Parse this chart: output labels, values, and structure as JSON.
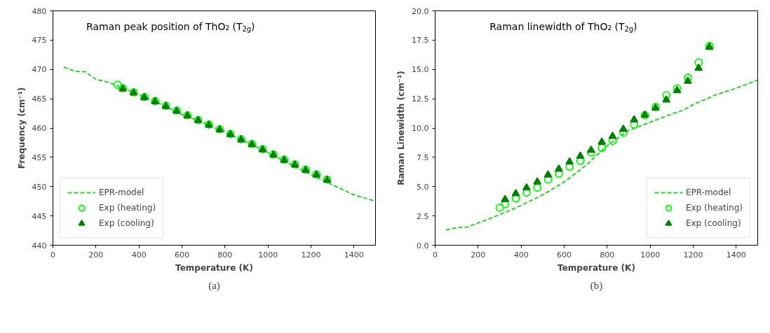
{
  "chart_data": [
    {
      "type": "scatter",
      "title": "Raman peak position of ThO₂ (T$_{2g}$)",
      "xlabel": "Temperature (K)",
      "ylabel": "Frequency (cm⁻¹)",
      "annotations": [
        "(a)"
      ],
      "xlim": [
        0,
        1500
      ],
      "ylim": [
        440,
        480
      ],
      "xticks": [
        0,
        200,
        400,
        600,
        800,
        1000,
        1200,
        1400
      ],
      "yticks": [
        440,
        445,
        450,
        455,
        460,
        465,
        470,
        475,
        480
      ],
      "grid": false,
      "legend": "bottom left",
      "series": [
        {
          "name": "EPR-model",
          "type": "line",
          "line_style": "dashed",
          "color": "#32cd32",
          "x": [
            50,
            100,
            150,
            200,
            250,
            300,
            400,
            500,
            600,
            700,
            800,
            900,
            1000,
            1100,
            1200,
            1300,
            1400,
            1500
          ],
          "values": [
            470.4,
            469.7,
            469.6,
            468.3,
            467.9,
            467.2,
            465.7,
            464.1,
            462.3,
            460.9,
            459.3,
            457.6,
            455.8,
            453.9,
            452.0,
            450.3,
            448.6,
            447.5
          ]
        },
        {
          "name": "Exp (heating)",
          "marker": "circle",
          "color": "#00ff00",
          "x": [
            300,
            325,
            375,
            425,
            475,
            525,
            575,
            625,
            675,
            725,
            775,
            825,
            875,
            925,
            975,
            1025,
            1075,
            1125,
            1175,
            1225,
            1275
          ],
          "values": [
            467.4,
            466.8,
            466.1,
            465.3,
            464.6,
            463.8,
            463.0,
            462.2,
            461.4,
            460.6,
            459.8,
            459.0,
            458.1,
            457.3,
            456.4,
            455.5,
            454.6,
            453.8,
            452.9,
            452.1,
            451.2
          ]
        },
        {
          "name": "Exp (cooling)",
          "marker": "triangle",
          "color": "#008000",
          "x": [
            325,
            375,
            425,
            475,
            525,
            575,
            625,
            675,
            725,
            775,
            825,
            875,
            925,
            975,
            1025,
            1075,
            1125,
            1175,
            1225,
            1275
          ],
          "values": [
            466.7,
            466.0,
            465.2,
            464.5,
            463.7,
            462.9,
            462.1,
            461.3,
            460.5,
            459.7,
            458.9,
            458.0,
            457.2,
            456.3,
            455.4,
            454.5,
            453.7,
            452.8,
            452.0,
            451.1
          ]
        }
      ]
    },
    {
      "type": "scatter",
      "title": "Raman linewidth of ThO₂ (T$_{2g}$)",
      "xlabel": "Temperature (K)",
      "ylabel": "Raman Linewidth (cm⁻¹)",
      "annotations": [
        "(b)"
      ],
      "xlim": [
        0,
        1500
      ],
      "ylim": [
        0,
        20
      ],
      "xticks": [
        0,
        200,
        400,
        600,
        800,
        1000,
        1200,
        1400
      ],
      "yticks": [
        {
          "value": 0,
          "label": "0.0"
        },
        {
          "value": 2.5,
          "label": "2.5"
        },
        {
          "value": 5,
          "label": "5.0"
        },
        {
          "value": 7.5,
          "label": "7.5"
        },
        {
          "value": 10,
          "label": "10.0"
        },
        {
          "value": 12.5,
          "label": "12.5"
        },
        {
          "value": 15,
          "label": "15.0"
        },
        {
          "value": 17.5,
          "label": "17.5"
        },
        {
          "value": 20,
          "label": "20.0"
        }
      ],
      "grid": false,
      "legend": "bottom right",
      "series": [
        {
          "name": "EPR-model",
          "type": "line",
          "line_style": "dashed",
          "color": "#32cd32",
          "x": [
            50,
            100,
            150,
            200,
            300,
            400,
            500,
            600,
            700,
            800,
            900,
            1000,
            1100,
            1150,
            1200,
            1300,
            1400,
            1500
          ],
          "values": [
            1.3,
            1.5,
            1.55,
            1.9,
            2.6,
            3.4,
            4.3,
            5.4,
            6.8,
            8.5,
            9.8,
            10.5,
            11.2,
            11.5,
            12.0,
            12.8,
            13.4,
            14.1
          ]
        },
        {
          "name": "Exp (heating)",
          "marker": "circle",
          "color": "#00ff00",
          "x": [
            300,
            325,
            375,
            425,
            475,
            525,
            575,
            625,
            675,
            725,
            775,
            825,
            875,
            925,
            975,
            1025,
            1075,
            1125,
            1175,
            1225,
            1275
          ],
          "values": [
            3.2,
            3.5,
            4.0,
            4.5,
            4.9,
            5.6,
            6.1,
            6.7,
            7.2,
            7.9,
            8.3,
            8.9,
            9.6,
            10.3,
            11.1,
            11.8,
            12.8,
            13.4,
            14.3,
            15.6,
            17.0
          ]
        },
        {
          "name": "Exp (cooling)",
          "marker": "triangle",
          "color": "#008000",
          "x": [
            325,
            375,
            425,
            475,
            525,
            575,
            625,
            675,
            725,
            775,
            825,
            875,
            925,
            975,
            1025,
            1075,
            1125,
            1175,
            1225,
            1275
          ],
          "values": [
            3.9,
            4.4,
            4.9,
            5.4,
            6.0,
            6.5,
            7.1,
            7.6,
            8.1,
            8.8,
            9.3,
            9.9,
            10.7,
            11.1,
            11.7,
            12.4,
            13.2,
            14.0,
            15.1,
            16.9
          ]
        }
      ]
    }
  ]
}
